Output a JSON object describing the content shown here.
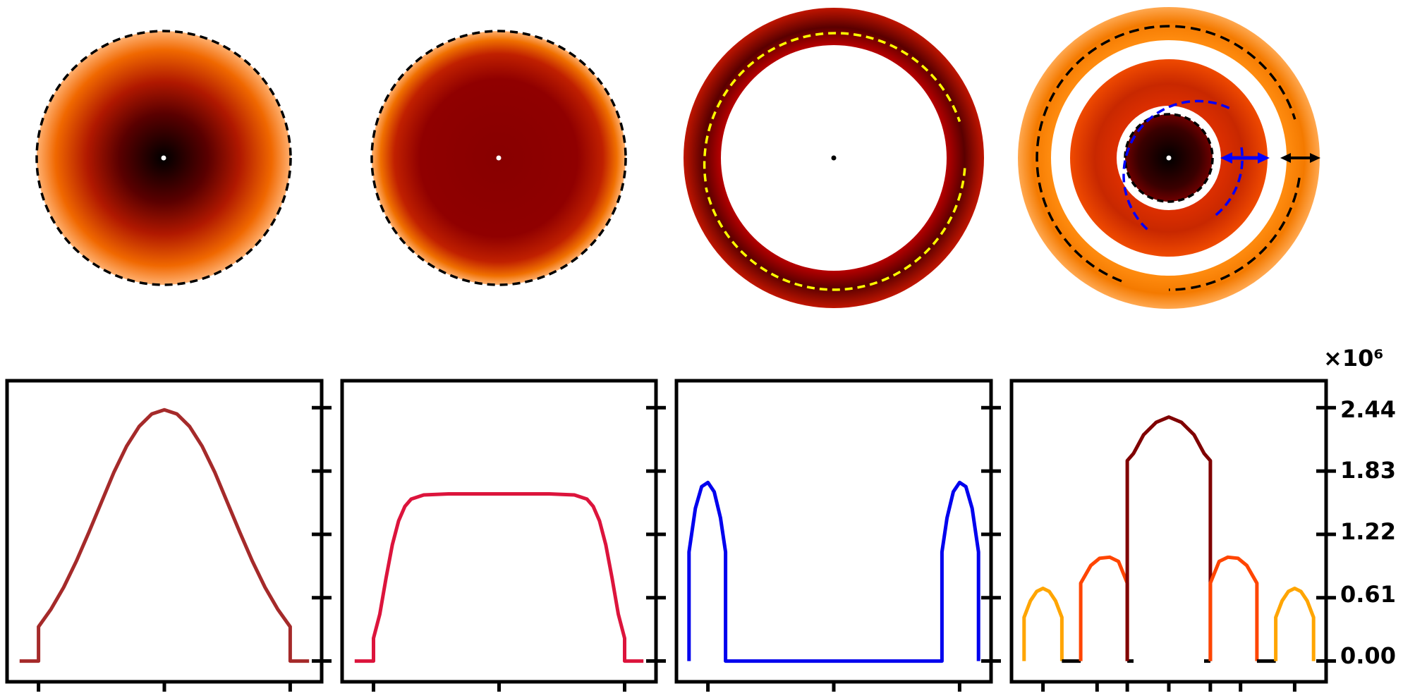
{
  "colors": {
    "gaussian": "#a52a2a",
    "flat_top": "#dc143c",
    "ring": "#0000ee",
    "composite_core": "#800000",
    "composite_ring2": "#ff4500",
    "composite_ring3": "#ffa500",
    "image_dark": "#000000",
    "image_mid": "#8b0000",
    "image_light": "#ff8c00",
    "guide_yellow": "#ffff00",
    "guide_blue": "#0000ff",
    "guide_black": "#000000"
  },
  "images": [
    {
      "type": "gaussian-disk",
      "colormap": "hot",
      "guide": "dashed-boundary"
    },
    {
      "type": "flat-top-disk",
      "colormap": "hot",
      "guide": "dashed-boundary"
    },
    {
      "type": "ring",
      "colormap": "hot",
      "guide": "yellow-dashed-arcs"
    },
    {
      "type": "multi-ring",
      "colormap": "hot",
      "guide": "blue-and-black-dashed-arcs",
      "arrows": [
        "blue-double-arrow",
        "black-double-arrow"
      ]
    }
  ],
  "y_axis": {
    "exponent_label": "×10⁶",
    "ticks": [
      "2.44",
      "1.83",
      "1.22",
      "0.61",
      "0.00"
    ],
    "tick_values": [
      2.44,
      1.83,
      1.22,
      0.61,
      0.0
    ],
    "ylim": [
      -0.2,
      2.7
    ]
  },
  "chart_data": [
    {
      "type": "line",
      "name": "gaussian-profile",
      "x": [
        -1.15,
        -1.0,
        -1.0,
        -0.9,
        -0.8,
        -0.7,
        -0.6,
        -0.5,
        -0.4,
        -0.3,
        -0.2,
        -0.1,
        0.0,
        0.1,
        0.2,
        0.3,
        0.4,
        0.5,
        0.6,
        0.7,
        0.8,
        0.9,
        1.0,
        1.0,
        1.15
      ],
      "y": [
        0.0,
        0.0,
        0.33,
        0.5,
        0.71,
        0.96,
        1.24,
        1.53,
        1.82,
        2.07,
        2.26,
        2.38,
        2.42,
        2.38,
        2.26,
        2.07,
        1.82,
        1.53,
        1.24,
        0.96,
        0.71,
        0.5,
        0.33,
        0.0,
        0.0
      ],
      "xlim": [
        -1.25,
        1.25
      ],
      "x_ticks": [
        -1,
        0,
        1
      ]
    },
    {
      "type": "line",
      "name": "flat-top-profile",
      "x": [
        -1.15,
        -1.0,
        -1.0,
        -0.95,
        -0.9,
        -0.85,
        -0.8,
        -0.75,
        -0.7,
        -0.6,
        -0.4,
        0.0,
        0.4,
        0.6,
        0.7,
        0.75,
        0.8,
        0.85,
        0.9,
        0.95,
        1.0,
        1.0,
        1.15
      ],
      "y": [
        0.0,
        0.0,
        0.22,
        0.45,
        0.8,
        1.12,
        1.35,
        1.49,
        1.56,
        1.6,
        1.61,
        1.61,
        1.61,
        1.6,
        1.56,
        1.49,
        1.35,
        1.12,
        0.8,
        0.45,
        0.22,
        0.0,
        0.0
      ],
      "xlim": [
        -1.25,
        1.25
      ],
      "x_ticks": [
        -1,
        0,
        1
      ]
    },
    {
      "type": "line",
      "name": "ring-profile",
      "x": [
        -1.15,
        -1.15,
        -1.1,
        -1.05,
        -1.0,
        -0.95,
        -0.9,
        -0.86,
        -0.86,
        0.86,
        0.86,
        0.9,
        0.95,
        1.0,
        1.05,
        1.1,
        1.15,
        1.15
      ],
      "y": [
        0.0,
        1.05,
        1.47,
        1.68,
        1.72,
        1.63,
        1.38,
        1.05,
        0.0,
        0.0,
        1.05,
        1.38,
        1.63,
        1.72,
        1.68,
        1.47,
        1.05,
        0.0
      ],
      "xlim": [
        -1.25,
        1.25
      ],
      "x_ticks": [
        -1,
        0,
        1
      ]
    },
    {
      "type": "line",
      "name": "multi-ring-profile",
      "series": [
        {
          "x": [
            -1.15,
            -1.15,
            -1.1,
            -1.05,
            -1.0,
            -0.95,
            -0.9,
            -0.85,
            -0.85
          ],
          "y": [
            0.0,
            0.42,
            0.58,
            0.67,
            0.7,
            0.67,
            0.58,
            0.42,
            0.0
          ],
          "color_key": "composite_ring3"
        },
        {
          "x": [
            -0.85,
            -0.7
          ],
          "y": [
            0.0,
            0.0
          ],
          "color_key": "image_dark"
        },
        {
          "x": [
            -0.7,
            -0.7,
            -0.62,
            -0.55,
            -0.47,
            -0.4,
            -0.33,
            -0.33
          ],
          "y": [
            0.0,
            0.75,
            0.92,
            0.99,
            1.0,
            0.96,
            0.75,
            0.0
          ],
          "color_key": "composite_ring2"
        },
        {
          "x": [
            -0.33,
            -0.28
          ],
          "y": [
            0.0,
            0.0
          ],
          "color_key": "image_dark"
        },
        {
          "x": [
            -0.33,
            -0.33,
            -0.28,
            -0.2,
            -0.1,
            0.0,
            0.1,
            0.2,
            0.28,
            0.33,
            0.33
          ],
          "y": [
            0.0,
            1.93,
            2.0,
            2.18,
            2.3,
            2.35,
            2.3,
            2.18,
            2.0,
            1.93,
            0.0
          ],
          "color_key": "composite_core"
        },
        {
          "x": [
            0.28,
            0.33
          ],
          "y": [
            0.0,
            0.0
          ],
          "color_key": "image_dark"
        },
        {
          "x": [
            0.33,
            0.33,
            0.4,
            0.47,
            0.55,
            0.62,
            0.7,
            0.7
          ],
          "y": [
            0.0,
            0.75,
            0.96,
            1.0,
            0.99,
            0.92,
            0.75,
            0.0
          ],
          "color_key": "composite_ring2"
        },
        {
          "x": [
            0.7,
            0.85
          ],
          "y": [
            0.0,
            0.0
          ],
          "color_key": "image_dark"
        },
        {
          "x": [
            0.85,
            0.85,
            0.9,
            0.95,
            1.0,
            1.05,
            1.1,
            1.15,
            1.15
          ],
          "y": [
            0.0,
            0.42,
            0.58,
            0.67,
            0.7,
            0.67,
            0.58,
            0.42,
            0.0
          ],
          "color_key": "composite_ring3"
        }
      ],
      "xlim": [
        -1.25,
        1.25
      ],
      "x_ticks": [
        -1.0,
        -0.57,
        -0.33,
        0.0,
        0.33,
        0.57,
        1.0
      ]
    }
  ]
}
